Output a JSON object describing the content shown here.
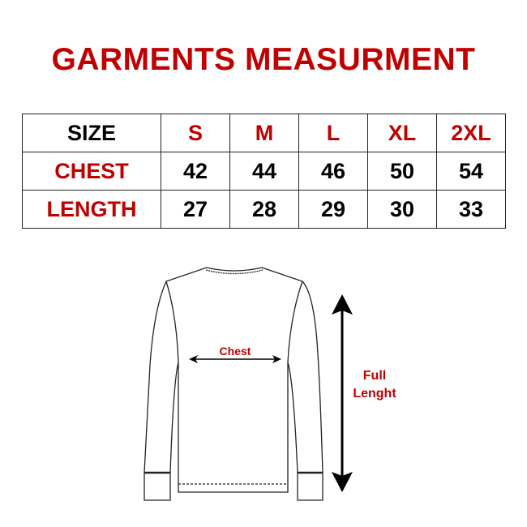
{
  "title": "GARMENTS MEASURMENT",
  "table": {
    "header": [
      "SIZE",
      "S",
      "M",
      "L",
      "XL",
      "2XL"
    ],
    "rows": [
      {
        "label": "CHEST",
        "values": [
          "42",
          "44",
          "46",
          "50",
          "54"
        ]
      },
      {
        "label": "LENGTH",
        "values": [
          "27",
          "28",
          "29",
          "30",
          "33"
        ]
      }
    ]
  },
  "diagram": {
    "chest_label": "Chest",
    "length_label_1": "Full",
    "length_label_2": "Lenght"
  },
  "colors": {
    "accent": "#c00000",
    "text": "#000000"
  }
}
